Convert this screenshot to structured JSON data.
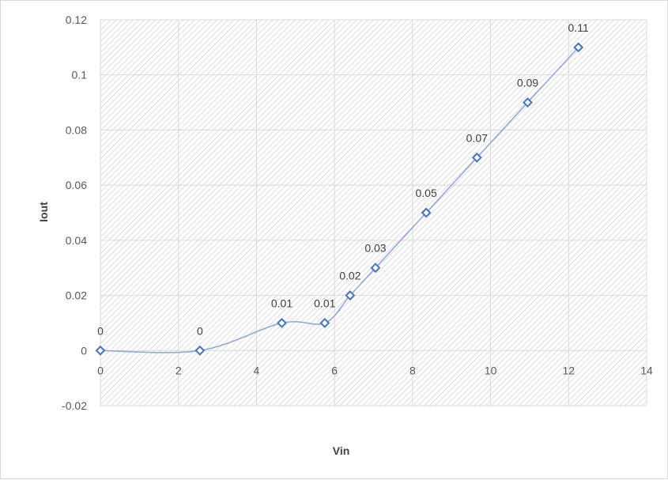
{
  "chart_data": {
    "type": "scatter",
    "title": "",
    "xlabel": "Vin",
    "ylabel": "Iout",
    "xlim": [
      0,
      14
    ],
    "ylim": [
      -0.02,
      0.12
    ],
    "x_ticks": [
      "0",
      "2",
      "4",
      "6",
      "8",
      "10",
      "12",
      "14"
    ],
    "y_ticks": [
      "-0.02",
      "0",
      "0.02",
      "0.04",
      "0.06",
      "0.08",
      "0.1",
      "0.12"
    ],
    "grid": true,
    "smoothed_line": true,
    "marker": "diamond-open",
    "series": [
      {
        "x": [
          0,
          2.55,
          4.65,
          5.75,
          6.4,
          7.05,
          8.35,
          9.65,
          10.95,
          12.25
        ],
        "y": [
          0,
          0,
          0.01,
          0.01,
          0.02,
          0.03,
          0.05,
          0.07,
          0.09,
          0.11
        ],
        "labels": [
          "0",
          "0",
          "0.01",
          "0.01",
          "0.02",
          "0.03",
          "0.05",
          "0.07",
          "0.09",
          "0.11"
        ]
      }
    ],
    "colors": {
      "series": "#4472c4",
      "line": "#8faadc",
      "grid": "#d9d9d9"
    }
  }
}
